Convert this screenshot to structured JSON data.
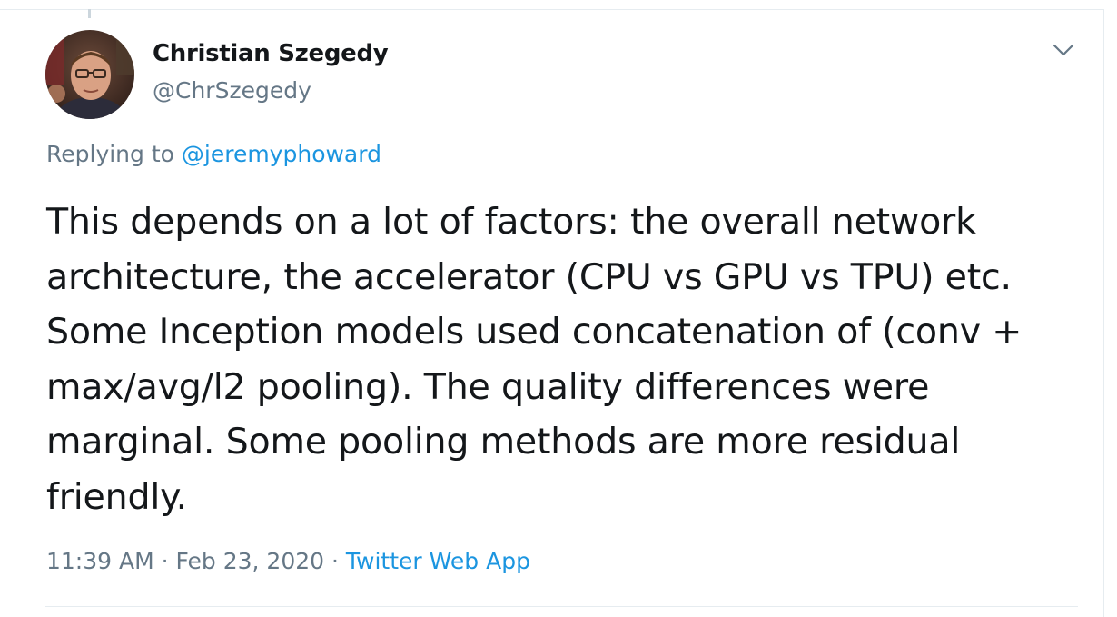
{
  "author": {
    "name": "Christian Szegedy",
    "handle": "@ChrSzegedy"
  },
  "reply": {
    "prefix": "Replying to ",
    "to_handle": "@jeremyphoward"
  },
  "tweet": {
    "text": "This depends on a lot of factors: the overall network architecture, the accelerator (CPU vs GPU vs TPU) etc. Some Inception models used concatenation of (conv + max/avg/l2 pooling). The quality differences were marginal. Some pooling methods are more residual friendly."
  },
  "meta": {
    "time": "11:39 AM",
    "separator_1": " · ",
    "date": "Feb 23, 2020",
    "separator_2": " · ",
    "source": "Twitter Web App"
  },
  "icons": {
    "menu": "chevron-down-icon"
  },
  "colors": {
    "link": "#1b95e0",
    "secondary_text": "#657786",
    "primary_text": "#14171a",
    "border": "#e6ecf0"
  }
}
